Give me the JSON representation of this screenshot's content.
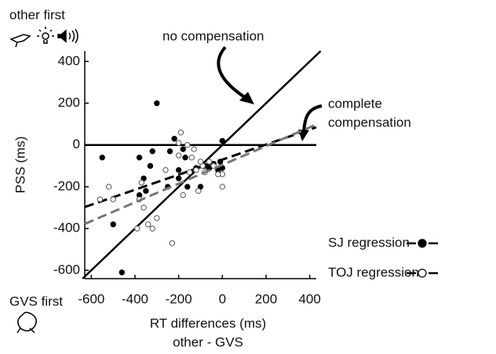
{
  "chart_data": {
    "type": "scatter",
    "xlabel": [
      "RT differences (ms)",
      "other - GVS"
    ],
    "ylabel": "PSS (ms)",
    "corner_labels": {
      "top": "other first",
      "bottom": "GVS first"
    },
    "annotations": [
      [
        "no compensation"
      ],
      [
        "complete",
        "compensation"
      ]
    ],
    "xlim": [
      -630,
      430
    ],
    "ylim": [
      -640,
      450
    ],
    "xticks": [
      -600,
      -400,
      -200,
      0,
      200,
      400
    ],
    "yticks": [
      -600,
      -400,
      -200,
      0,
      200,
      400
    ],
    "reference_lines": [
      {
        "x": [
          -640,
          450
        ],
        "y": [
          -640,
          450
        ],
        "color": "#000000"
      },
      {
        "x": [
          -630,
          430
        ],
        "y": [
          0,
          0
        ],
        "color": "#000000"
      }
    ],
    "series": [
      {
        "name": "SJ regression",
        "color": "#000000",
        "marker": "filled",
        "x": [
          -300,
          -550,
          -500,
          -460,
          -380,
          -360,
          -350,
          -330,
          -320,
          -240,
          -220,
          -200,
          -180,
          -170,
          -160,
          -140,
          -120,
          -100,
          -80,
          -60,
          -40,
          -20,
          0,
          0,
          -10,
          -380,
          -200,
          -250
        ],
        "y": [
          200,
          -60,
          -380,
          -610,
          -60,
          -160,
          -220,
          -100,
          -30,
          -30,
          30,
          -120,
          -20,
          -60,
          -200,
          -130,
          -110,
          -200,
          -100,
          -110,
          -90,
          -120,
          20,
          -110,
          -80,
          -240,
          -160,
          -200
        ],
        "fit_x": [
          -630,
          430
        ],
        "fit_y": [
          -297,
          85
        ]
      },
      {
        "name": "TOJ regression",
        "color": "#777777",
        "marker": "open",
        "x": [
          -560,
          -520,
          -500,
          -380,
          -370,
          -360,
          -340,
          -320,
          -300,
          -260,
          -230,
          -200,
          -190,
          -180,
          -160,
          -140,
          -130,
          -120,
          -110,
          -90,
          -80,
          -60,
          -40,
          0,
          0,
          -20,
          -200,
          -150,
          -100,
          -390
        ],
        "y": [
          -260,
          -200,
          -260,
          -260,
          -180,
          -300,
          -380,
          -400,
          -350,
          -120,
          -470,
          10,
          60,
          -240,
          0,
          -60,
          -20,
          -120,
          -220,
          -100,
          -130,
          -80,
          -100,
          -200,
          -140,
          -140,
          -50,
          -130,
          -80,
          -400
        ],
        "fit_x": [
          -630,
          430
        ],
        "fit_y": [
          -378,
          98
        ]
      }
    ]
  }
}
